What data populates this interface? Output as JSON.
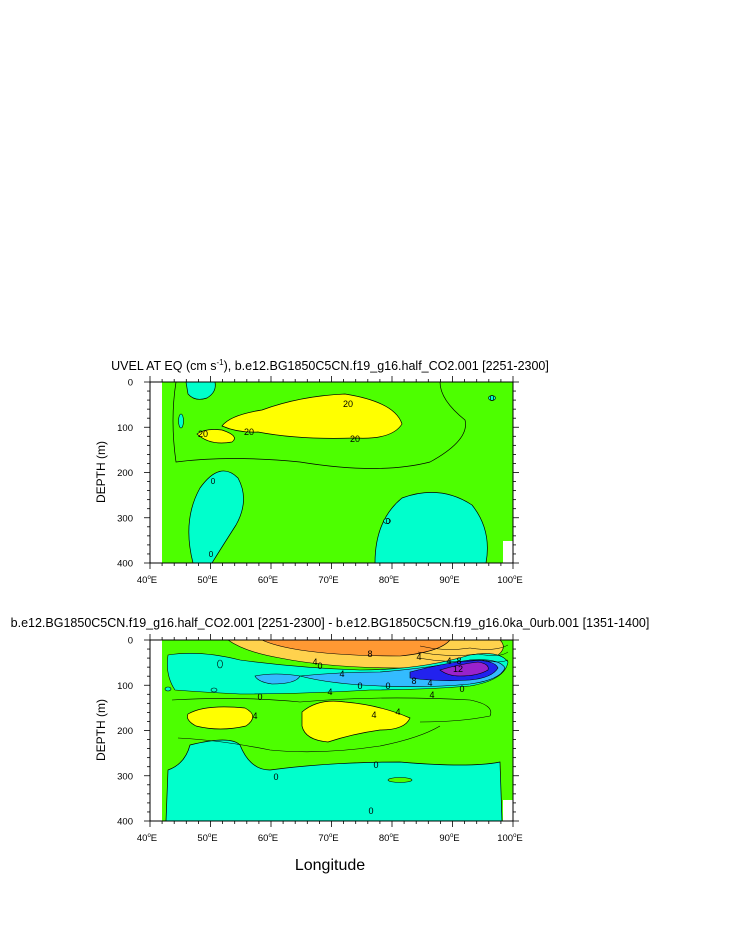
{
  "figure": {
    "xlabel": "Longitude",
    "colors": {
      "cyan": "#00ffcc",
      "green": "#4dff00",
      "lightgreen": "#33ee66",
      "yellow": "#ffff00",
      "lightorange": "#ffd24d",
      "orange": "#ff9933",
      "blue": "#33bbff",
      "darkblue": "#2222ee",
      "purple": "#9922cc"
    }
  },
  "chart_data": [
    {
      "type": "contour",
      "title": "UVEL AT EQ (cm s",
      "title_exp": "-1",
      "title_rest": "), b.e12.BG1850C5CN.f19_g16.half_CO2.001 [2251-2300]",
      "ylabel": "DEPTH (m)",
      "xlim": [
        40,
        100
      ],
      "ylim": [
        400,
        0
      ],
      "xticks": [
        "40",
        "50",
        "60",
        "70",
        "80",
        "90",
        "100"
      ],
      "x_unit": "E",
      "yticks": [
        "0",
        "100",
        "200",
        "300",
        "400"
      ],
      "contour_labels": [
        "20",
        "20",
        "20",
        "20",
        "0",
        "0",
        "0",
        "0"
      ]
    },
    {
      "type": "contour",
      "title": "b.e12.BG1850C5CN.f19_g16.half_CO2.001 [2251-2300] - b.e12.BG1850C5CN.f19_g16.0ka_0urb.001 [1351-1400]",
      "ylabel": "DEPTH (m)",
      "xlim": [
        40,
        100
      ],
      "ylim": [
        400,
        0
      ],
      "xticks": [
        "40",
        "50",
        "60",
        "70",
        "80",
        "90",
        "100"
      ],
      "x_unit": "E",
      "yticks": [
        "0",
        "100",
        "200",
        "300",
        "400"
      ],
      "contour_labels": [
        "4",
        "8",
        "4",
        "4",
        "4",
        "0",
        "0",
        "0",
        "4",
        "8",
        "4",
        "8",
        "12",
        "4",
        "4",
        "4",
        "4",
        "0",
        "0",
        "0",
        "0",
        "0"
      ]
    }
  ]
}
